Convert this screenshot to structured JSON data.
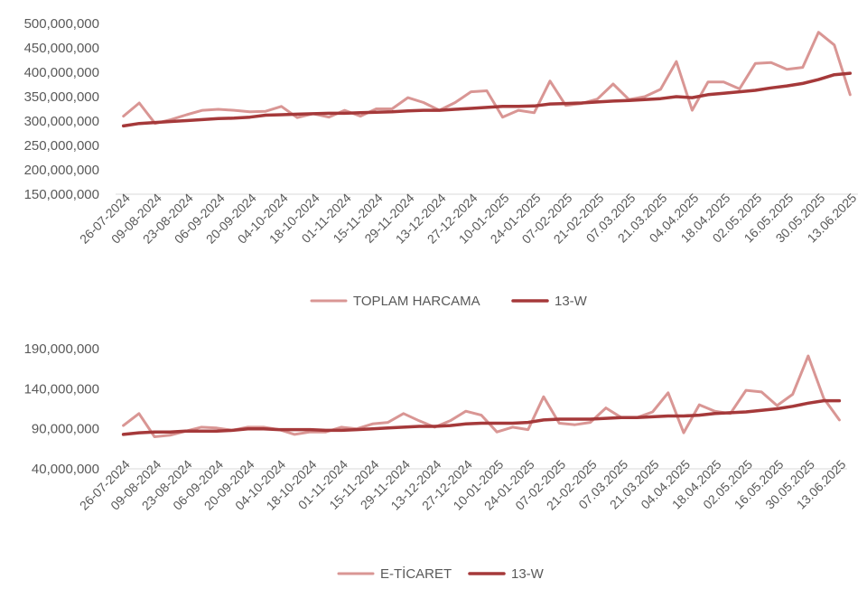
{
  "colors": {
    "primary": "#d99694",
    "average": "#a5393a",
    "axis": "#d9d9d9",
    "text": "#595959"
  },
  "chart_data": [
    {
      "type": "line",
      "ylim": [
        150000000,
        500000000
      ],
      "y_ticks": [
        "150,000,000",
        "200,000,000",
        "250,000,000",
        "300,000,000",
        "350,000,000",
        "400,000,000",
        "450,000,000",
        "500,000,000"
      ],
      "y_tick_values": [
        150000000,
        200000000,
        250000000,
        300000000,
        350000000,
        400000000,
        450000000,
        500000000
      ],
      "x_tick_labels": [
        "26-07-2024",
        "09-08-2024",
        "23-08-2024",
        "06-09-2024",
        "20-09-2024",
        "04-10-2024",
        "18-10-2024",
        "01-11-2024",
        "15-11-2024",
        "29-11-2024",
        "13-12-2024",
        "27-12-2024",
        "10-01-2025",
        "24-01-2025",
        "07-02-2025",
        "21-02-2025",
        "07.03.2025",
        "21.03.2025",
        "04.04.2025",
        "18.04.2025",
        "02.05.2025",
        "16.05.2025",
        "30.05.2025",
        "13.06.2025"
      ],
      "legend": {
        "placement": "bottom-center",
        "items": [
          "TOPLAM HARCAMA",
          "13-W"
        ]
      },
      "series": [
        {
          "name": "TOPLAM HARCAMA",
          "values": [
            310000000,
            337000000,
            295000000,
            303000000,
            313000000,
            322000000,
            324000000,
            322000000,
            319000000,
            320000000,
            330000000,
            307000000,
            315000000,
            308000000,
            322000000,
            310000000,
            325000000,
            325000000,
            348000000,
            338000000,
            322000000,
            338000000,
            360000000,
            362000000,
            308000000,
            322000000,
            317000000,
            382000000,
            332000000,
            336000000,
            345000000,
            376000000,
            344000000,
            350000000,
            365000000,
            422000000,
            322000000,
            380000000,
            380000000,
            366000000,
            418000000,
            420000000,
            406000000,
            410000000,
            482000000,
            456000000,
            354000000
          ]
        },
        {
          "name": "13-W",
          "values": [
            290000000,
            295000000,
            297000000,
            299000000,
            301000000,
            303000000,
            305000000,
            306000000,
            308000000,
            312000000,
            313000000,
            314000000,
            315000000,
            316000000,
            316000000,
            317000000,
            318000000,
            319000000,
            321000000,
            322000000,
            322000000,
            324000000,
            326000000,
            328000000,
            330000000,
            330000000,
            331000000,
            335000000,
            336000000,
            337000000,
            339000000,
            341000000,
            342000000,
            344000000,
            346000000,
            350000000,
            348000000,
            354000000,
            357000000,
            360000000,
            363000000,
            368000000,
            372000000,
            377000000,
            385000000,
            395000000,
            398000000
          ]
        }
      ]
    },
    {
      "type": "line",
      "ylim": [
        40000000,
        190000000
      ],
      "y_ticks": [
        "40,000,000",
        "90,000,000",
        "140,000,000",
        "190,000,000"
      ],
      "y_tick_values": [
        40000000,
        90000000,
        140000000,
        190000000
      ],
      "x_tick_labels": [
        "26-07-2024",
        "09-08-2024",
        "23-08-2024",
        "06-09-2024",
        "20-09-2024",
        "04-10-2024",
        "18-10-2024",
        "01-11-2024",
        "15-11-2024",
        "29-11-2024",
        "13-12-2024",
        "27-12-2024",
        "10-01-2025",
        "24-01-2025",
        "07-02-2025",
        "21-02-2025",
        "07.03.2025",
        "21.03.2025",
        "04.04.2025",
        "18.04.2025",
        "02.05.2025",
        "16.05.2025",
        "30.05.2025",
        "13.06.2025"
      ],
      "legend": {
        "placement": "bottom-center",
        "items": [
          "E-TİCARET",
          "13-W"
        ]
      },
      "series": [
        {
          "name": "E-TİCARET",
          "values": [
            94000000,
            109000000,
            80000000,
            82000000,
            87000000,
            92000000,
            91000000,
            88000000,
            92000000,
            92000000,
            89000000,
            83000000,
            86000000,
            86000000,
            92000000,
            90000000,
            96000000,
            98000000,
            109000000,
            100000000,
            92000000,
            100000000,
            112000000,
            107000000,
            86000000,
            92000000,
            89000000,
            130000000,
            97000000,
            95000000,
            98000000,
            116000000,
            104000000,
            104000000,
            111000000,
            135000000,
            85000000,
            120000000,
            112000000,
            109000000,
            138000000,
            136000000,
            119000000,
            133000000,
            181000000,
            128000000,
            101000000
          ]
        },
        {
          "name": "13-W",
          "values": [
            83000000,
            85000000,
            86000000,
            86000000,
            87000000,
            87000000,
            87000000,
            88000000,
            90000000,
            90000000,
            89000000,
            89000000,
            89000000,
            88000000,
            88000000,
            89000000,
            90000000,
            91000000,
            92000000,
            93000000,
            93000000,
            94000000,
            96000000,
            97000000,
            97000000,
            97000000,
            98000000,
            101000000,
            102000000,
            102000000,
            102000000,
            103000000,
            104000000,
            104000000,
            105000000,
            106000000,
            106000000,
            107000000,
            109000000,
            110000000,
            111000000,
            113000000,
            115000000,
            118000000,
            122000000,
            125000000,
            125000000
          ]
        }
      ]
    }
  ]
}
